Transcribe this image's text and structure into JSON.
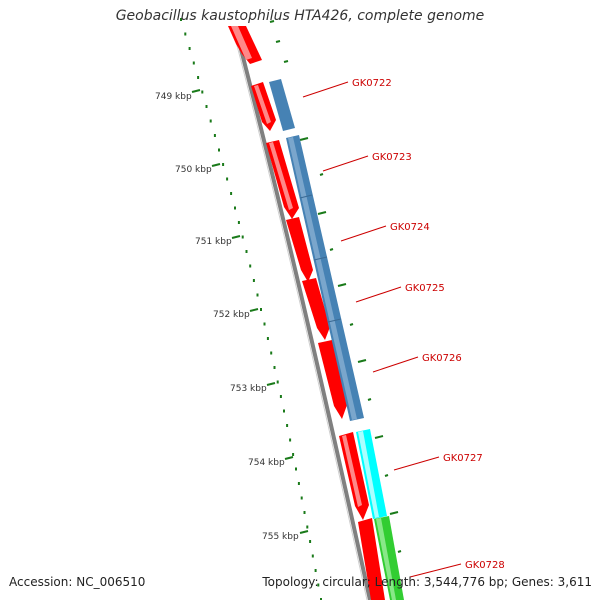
{
  "title": "Geobacillus kaustophilus HTA426, complete genome",
  "footer": {
    "accession": "Accession: NC_006510",
    "summary": "Topology: circular; Length: 3,544,776 bp; Genes: 3,611"
  },
  "ruler_labels": [
    "749 kbp",
    "750 kbp",
    "751 kbp",
    "752 kbp",
    "753 kbp",
    "754 kbp",
    "755 kbp"
  ],
  "gene_labels": [
    "GK0722",
    "GK0723",
    "GK0724",
    "GK0725",
    "GK0726",
    "GK0727",
    "GK0728"
  ],
  "colors": {
    "backbone": "#808080",
    "forward_feature": "#ff0000",
    "cds_feature": "#4682b4",
    "cyan_feature": "#00ffff",
    "green_feature": "#32cd32",
    "label": "#cc0000",
    "tick": "#1a7a1a"
  }
}
